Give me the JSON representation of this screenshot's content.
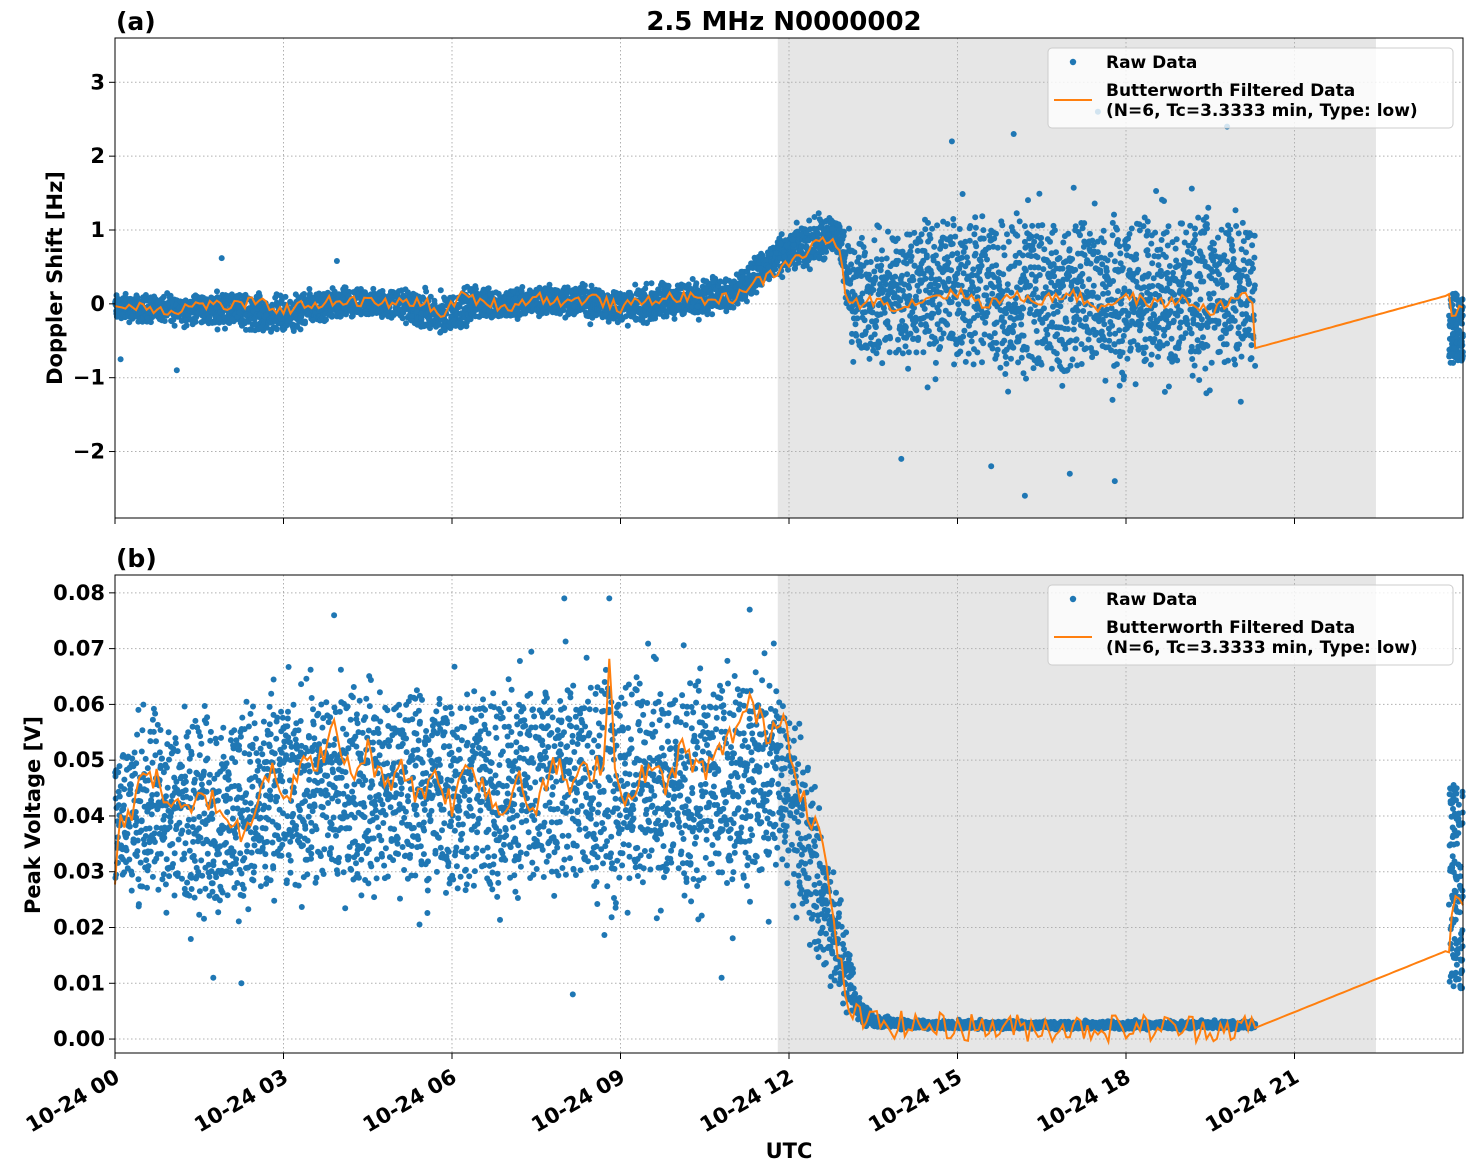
{
  "colors": {
    "raw": "#1f77b4",
    "filtered": "#ff7f0e",
    "shade": "#e6e6e6",
    "grid": "#b0b0b0"
  },
  "figure_title": "2.5 MHz N0000002",
  "x_axis": {
    "label": "UTC",
    "tick_labels": [
      "10-24 00",
      "10-24 03",
      "10-24 06",
      "10-24 09",
      "10-24 12",
      "10-24 15",
      "10-24 18",
      "10-24 21"
    ]
  },
  "legend": {
    "raw_label": "Raw Data",
    "filtered_label_line1": "Butterworth Filtered Data",
    "filtered_label_line2": "(N=6, Tc=3.3333 min, Type: low)"
  },
  "chart_data": [
    {
      "type": "scatter",
      "panel_label": "(a)",
      "title": "2.5 MHz N0000002",
      "xlabel": "",
      "ylabel": "Doppler Shift [Hz]",
      "x_unit": "hours UTC on 10-24",
      "xlim": [
        0,
        24
      ],
      "ylim": [
        -2.9,
        3.6
      ],
      "yticks": [
        -2,
        -1,
        0,
        1,
        2,
        3
      ],
      "ytick_labels": [
        "−2",
        "−1",
        "0",
        "1",
        "2",
        "3"
      ],
      "grid": true,
      "legend_position": "top-right",
      "shaded_interval": [
        11.8,
        22.45
      ],
      "series": [
        {
          "name": "Raw Data",
          "kind": "scatter-band",
          "x": [
            0,
            1,
            2,
            3,
            4,
            5,
            5.8,
            6.5,
            7,
            8,
            9,
            10,
            11,
            11.5,
            12,
            12.5,
            12.9,
            13.1,
            14,
            15,
            16,
            17,
            18,
            19,
            20.3
          ],
          "upper": [
            0.2,
            0.2,
            0.25,
            0.2,
            0.3,
            0.3,
            0.25,
            0.35,
            0.3,
            0.35,
            0.3,
            0.4,
            0.5,
            0.8,
            1.1,
            1.3,
            1.4,
            1.2,
            1.6,
            1.8,
            1.7,
            1.8,
            1.7,
            1.8,
            1.6
          ],
          "lower": [
            -0.3,
            -0.35,
            -0.4,
            -0.5,
            -0.3,
            -0.3,
            -0.6,
            -0.3,
            -0.3,
            -0.25,
            -0.4,
            -0.3,
            -0.2,
            0.1,
            0.3,
            0.4,
            0.5,
            -1.0,
            -1.3,
            -1.4,
            -1.5,
            -1.6,
            -1.5,
            -1.5,
            -1.4
          ],
          "outliers_high": [
            [
              1.9,
              0.62
            ],
            [
              3.95,
              0.58
            ],
            [
              14.9,
              2.2
            ],
            [
              16.0,
              2.3
            ],
            [
              17.5,
              2.6
            ],
            [
              19.8,
              2.4
            ]
          ],
          "outliers_low": [
            [
              0.1,
              -0.75
            ],
            [
              1.1,
              -0.9
            ],
            [
              14.0,
              -2.1
            ],
            [
              15.6,
              -2.2
            ],
            [
              16.2,
              -2.6
            ],
            [
              17.0,
              -2.3
            ],
            [
              17.8,
              -2.4
            ]
          ],
          "late_x": [
            23.75,
            24
          ],
          "late_range": [
            -0.8,
            0.15
          ]
        },
        {
          "name": "Butterworth Filtered Data (N=6, Tc=3.3333 min, Type: low)",
          "kind": "line",
          "x": [
            0,
            0.5,
            1,
            1.5,
            2,
            2.5,
            3,
            3.5,
            4,
            4.5,
            5,
            5.5,
            5.8,
            6.1,
            6.5,
            7,
            7.5,
            8,
            8.5,
            9,
            9.5,
            10,
            10.5,
            11,
            11.3,
            11.6,
            12,
            12.3,
            12.6,
            12.9,
            13.0,
            13.2,
            13.5,
            14,
            14.5,
            15,
            15.5,
            16,
            16.5,
            17,
            17.5,
            18,
            18.5,
            19,
            19.5,
            20.0,
            20.25,
            20.3,
            23.75,
            23.8,
            24
          ],
          "y": [
            -0.05,
            -0.02,
            -0.1,
            0.0,
            -0.03,
            0.02,
            -0.08,
            0.0,
            0.05,
            0.02,
            0.0,
            0.05,
            -0.2,
            0.1,
            0.05,
            -0.05,
            0.1,
            0.02,
            0.08,
            -0.05,
            0.05,
            0.1,
            0.05,
            0.08,
            0.25,
            0.35,
            0.55,
            0.7,
            0.9,
            0.75,
            0.1,
            0.0,
            0.05,
            -0.05,
            0.1,
            0.15,
            0.0,
            0.1,
            0.05,
            0.15,
            -0.05,
            0.1,
            0.0,
            0.05,
            -0.1,
            0.1,
            0.05,
            -0.6,
            0.12,
            -0.15,
            -0.05
          ]
        }
      ]
    },
    {
      "type": "scatter",
      "panel_label": "(b)",
      "title": "",
      "xlabel": "UTC",
      "ylabel": "Peak Voltage [V]",
      "x_unit": "hours UTC on 10-24",
      "xlim": [
        0,
        24
      ],
      "ylim": [
        -0.0025,
        0.0832
      ],
      "yticks": [
        0.0,
        0.01,
        0.02,
        0.03,
        0.04,
        0.05,
        0.06,
        0.07,
        0.08
      ],
      "ytick_labels": [
        "0.00",
        "0.01",
        "0.02",
        "0.03",
        "0.04",
        "0.05",
        "0.06",
        "0.07",
        "0.08"
      ],
      "grid": true,
      "legend_position": "top-right",
      "shaded_interval": [
        11.8,
        22.45
      ],
      "series": [
        {
          "name": "Raw Data",
          "kind": "scatter-band",
          "x": [
            0,
            0.5,
            1,
            2,
            3,
            4,
            5,
            6,
            7,
            8,
            8.8,
            9.5,
            10.5,
            11.2,
            11.8,
            12.2,
            12.5,
            12.8,
            13.0,
            13.2,
            13.5,
            14,
            15,
            16,
            17,
            18,
            19,
            20.3
          ],
          "upper": [
            0.058,
            0.065,
            0.066,
            0.068,
            0.07,
            0.072,
            0.073,
            0.072,
            0.073,
            0.075,
            0.076,
            0.075,
            0.074,
            0.076,
            0.074,
            0.064,
            0.05,
            0.035,
            0.022,
            0.01,
            0.005,
            0.004,
            0.0035,
            0.0035,
            0.0035,
            0.0035,
            0.0035,
            0.0035
          ],
          "lower": [
            0.016,
            0.018,
            0.015,
            0.014,
            0.018,
            0.018,
            0.017,
            0.016,
            0.016,
            0.018,
            0.014,
            0.016,
            0.017,
            0.016,
            0.02,
            0.012,
            0.006,
            0.003,
            0.002,
            0.0015,
            0.0015,
            0.0015,
            0.0015,
            0.0015,
            0.0015,
            0.0015,
            0.0015,
            0.0015
          ],
          "outliers_high": [
            [
              8.0,
              0.079
            ],
            [
              8.8,
              0.079
            ],
            [
              11.3,
              0.077
            ],
            [
              3.9,
              0.076
            ]
          ],
          "outliers_low": [
            [
              1.75,
              0.011
            ],
            [
              2.25,
              0.01
            ],
            [
              8.15,
              0.008
            ],
            [
              10.8,
              0.011
            ]
          ],
          "late_x": [
            23.75,
            24
          ],
          "late_range": [
            0.009,
            0.046
          ]
        },
        {
          "name": "Butterworth Filtered Data (N=6, Tc=3.3333 min, Type: low)",
          "kind": "line",
          "x": [
            0,
            0.1,
            0.3,
            0.5,
            0.8,
            1.0,
            1.3,
            1.6,
            2.0,
            2.3,
            2.6,
            2.8,
            3.0,
            3.3,
            3.6,
            3.9,
            4.2,
            4.5,
            4.8,
            5.1,
            5.4,
            5.7,
            6.0,
            6.3,
            6.6,
            6.9,
            7.2,
            7.5,
            7.8,
            8.1,
            8.4,
            8.7,
            8.8,
            8.9,
            9.2,
            9.5,
            9.8,
            10.1,
            10.4,
            10.7,
            11.0,
            11.3,
            11.6,
            11.9,
            12.2,
            12.4,
            12.6,
            12.8,
            13.0,
            13.2,
            13.5,
            14,
            15,
            16,
            17,
            18,
            19,
            20.3,
            23.75,
            23.8,
            24
          ],
          "y": [
            0.03,
            0.04,
            0.038,
            0.05,
            0.045,
            0.042,
            0.04,
            0.044,
            0.04,
            0.036,
            0.046,
            0.05,
            0.043,
            0.048,
            0.05,
            0.055,
            0.047,
            0.052,
            0.045,
            0.05,
            0.043,
            0.048,
            0.042,
            0.05,
            0.045,
            0.04,
            0.048,
            0.04,
            0.05,
            0.045,
            0.048,
            0.05,
            0.069,
            0.048,
            0.042,
            0.05,
            0.045,
            0.052,
            0.048,
            0.05,
            0.055,
            0.06,
            0.055,
            0.058,
            0.045,
            0.04,
            0.035,
            0.02,
            0.008,
            0.004,
            0.003,
            0.0025,
            0.0022,
            0.002,
            0.002,
            0.002,
            0.002,
            0.002,
            0.016,
            0.024,
            0.024
          ]
        }
      ]
    }
  ]
}
